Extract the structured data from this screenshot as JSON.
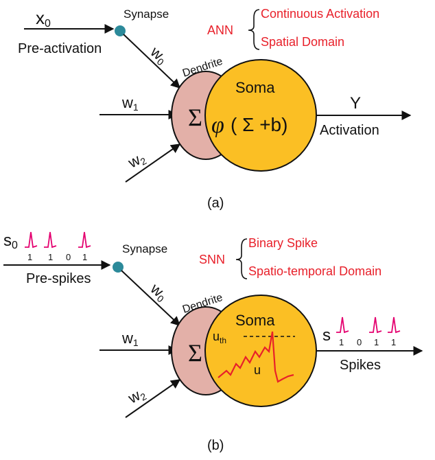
{
  "colors": {
    "soma_fill": "#fbbf24",
    "dendrite_fill": "#e3b0a8",
    "synapse_fill": "#2c8a9a",
    "accent_red": "#e8202a",
    "spike_color": "#e4006f",
    "stroke": "#111111"
  },
  "panel_a": {
    "input_var": "x",
    "input_sub": "0",
    "input_label": "Pre-activation",
    "synapse_label": "Synapse",
    "dendrite_label": "Dendrite",
    "weight0": "w",
    "weight0_sub": "0",
    "weight1": "w",
    "weight1_sub": "1",
    "weight2": "w",
    "weight2_sub": "2",
    "sum_symbol": "Σ",
    "soma_label": "Soma",
    "soma_phi": "φ",
    "soma_formula": "( Σ +b)",
    "output_var": "Y",
    "output_label": "Activation",
    "net_name": "ANN",
    "feature1": "Continuous Activation",
    "feature2": "Spatial Domain",
    "caption": "(a)"
  },
  "panel_b": {
    "input_var": "s",
    "input_sub": "0",
    "input_bits": [
      "1",
      "1",
      "0",
      "1"
    ],
    "input_label": "Pre-spikes",
    "synapse_label": "Synapse",
    "dendrite_label": "Dendrite",
    "weight0": "w",
    "weight0_sub": "0",
    "weight1": "w",
    "weight1_sub": "1",
    "weight2": "w",
    "weight2_sub": "2",
    "sum_symbol": "Σ",
    "soma_label": "Soma",
    "threshold_var": "u",
    "threshold_sub": "th",
    "potential_label": "u",
    "output_var": "s",
    "output_bits": [
      "1",
      "0",
      "1",
      "1"
    ],
    "output_label": "Spikes",
    "net_name": "SNN",
    "feature1": "Binary Spike",
    "feature2": "Spatio-temporal Domain",
    "caption": "(b)"
  }
}
